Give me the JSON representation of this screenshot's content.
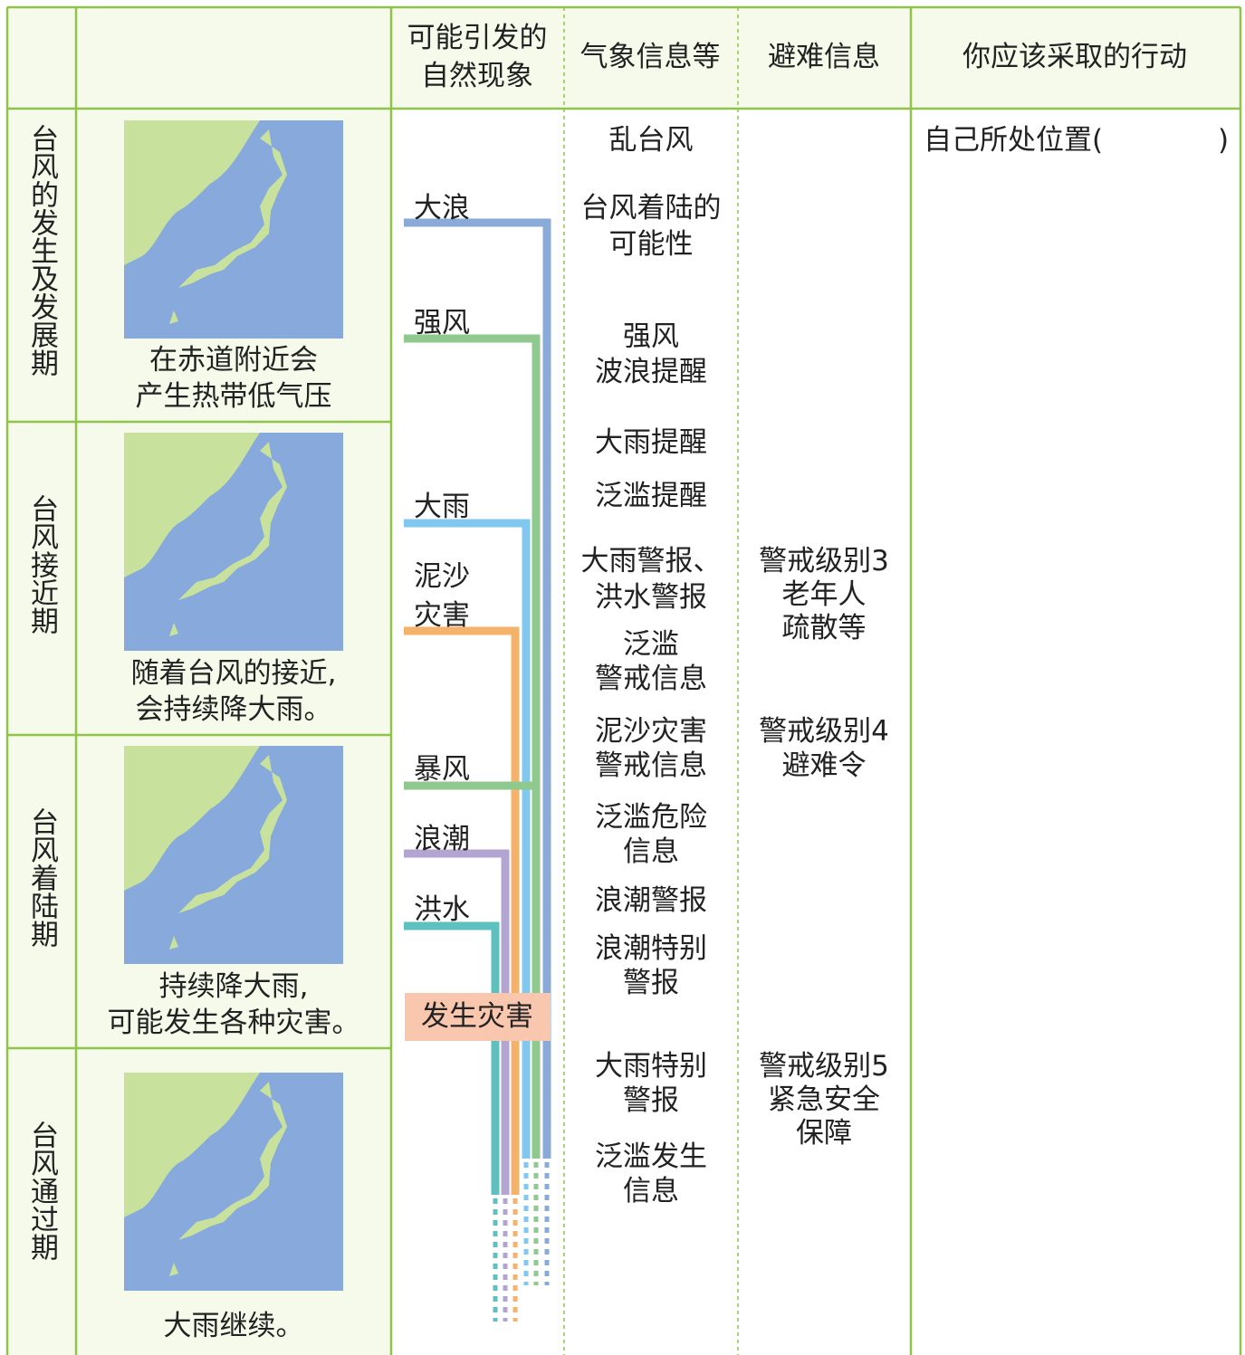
{
  "header": {
    "phenomena": [
      "可能引发的",
      "自然现象"
    ],
    "weather_info": "气象信息等",
    "evacuation_info": "避难信息",
    "action": "你应该采取的行动"
  },
  "phases": [
    {
      "label": "台风的发生及发展期",
      "caption": [
        "在赤道附近会",
        "产生热带低气压"
      ]
    },
    {
      "label": "台风接近期",
      "caption": [
        "随着台风的接近,",
        "会持续降大雨。"
      ]
    },
    {
      "label": "台风着陆期",
      "caption": [
        "持续降大雨,",
        "可能发生各种灾害。"
      ]
    },
    {
      "label": "台风通过期",
      "caption": [
        "大雨继续。"
      ]
    }
  ],
  "phenomena": [
    [
      "大浪"
    ],
    [
      "强风"
    ],
    [
      "大雨"
    ],
    [
      "泥沙",
      "灾害"
    ],
    [
      "暴风"
    ],
    [
      "浪潮"
    ],
    [
      "洪水"
    ]
  ],
  "disaster_box": "发生灾害",
  "weather_info": [
    [
      "乱台风"
    ],
    [
      "台风着陆的",
      "可能性"
    ],
    [
      "强风",
      "波浪提醒"
    ],
    [
      "大雨提醒"
    ],
    [
      "泛滥提醒"
    ],
    [
      "大雨警报、",
      "洪水警报"
    ],
    [
      "泛滥",
      "警戒信息"
    ],
    [
      "泥沙灾害",
      "警戒信息"
    ],
    [
      "泛滥危险",
      "信息"
    ],
    [
      "浪潮警报"
    ],
    [
      "浪潮特别",
      "警报"
    ],
    [
      "大雨特别",
      "警报"
    ],
    [
      "泛滥发生",
      "信息"
    ]
  ],
  "evacuation_info": [
    [
      "警戒级别3",
      "老年人",
      "疏散等"
    ],
    [
      "警戒级别4",
      "避难令"
    ],
    [
      "警戒级别5",
      "紧急安全",
      "保障"
    ]
  ],
  "action": {
    "text": "自己所处位置(",
    "close": ")"
  }
}
